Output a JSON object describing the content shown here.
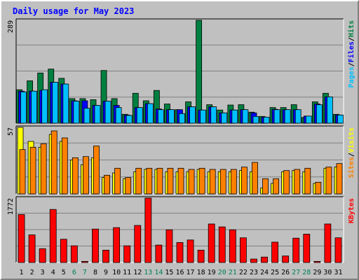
{
  "chart_data": {
    "type": "bar",
    "title": "Daily usage for May 2023",
    "colors": {
      "background": "#c0c0c0",
      "title": "#0000ff",
      "pages": "#00c0ff",
      "files": "#0000ff",
      "hits": "#008040",
      "sites": "#ff8000",
      "visits": "#ffff00",
      "kbytes": "#ff0000",
      "weekend_label": "#00805c",
      "weekday_label": "#000000"
    },
    "categories": [
      "1",
      "2",
      "3",
      "4",
      "5",
      "6",
      "7",
      "8",
      "9",
      "10",
      "11",
      "12",
      "13",
      "14",
      "15",
      "16",
      "17",
      "18",
      "19",
      "20",
      "21",
      "22",
      "23",
      "24",
      "25",
      "26",
      "27",
      "28",
      "29",
      "30",
      "31"
    ],
    "weekend_days": [
      "6",
      "7",
      "13",
      "14",
      "20",
      "21",
      "27",
      "28"
    ],
    "panels": [
      {
        "id": "hits-files-pages",
        "max_label": "289",
        "ymax": 289,
        "legend": [
          {
            "text": "Pages",
            "color": "#00c0ff"
          },
          {
            "text": "/",
            "color": "#000000"
          },
          {
            "text": "Files",
            "color": "#0000ff"
          },
          {
            "text": "/",
            "color": "#000000"
          },
          {
            "text": "Hits",
            "color": "#008040"
          }
        ],
        "series": [
          {
            "name": "Hits",
            "color": "#008040",
            "values": [
              94,
              119,
              141,
              152,
              126,
              69,
              69,
              66,
              148,
              69,
              25,
              84,
              63,
              92,
              54,
              38,
              60,
              289,
              52,
              37,
              51,
              52,
              31,
              19,
              44,
              44,
              52,
              16,
              60,
              84,
              25
            ]
          },
          {
            "name": "Files",
            "color": "#0000ff",
            "values": [
              90,
              90,
              92,
              115,
              110,
              63,
              63,
              50,
              62,
              50,
              23,
              44,
              55,
              40,
              38,
              38,
              46,
              37,
              46,
              29,
              37,
              38,
              29,
              17,
              39,
              38,
              38,
              20,
              54,
              74,
              23
            ]
          },
          {
            "name": "Pages",
            "color": "#00c0ff",
            "values": [
              88,
              90,
              94,
              115,
              110,
              62,
              42,
              50,
              62,
              44,
              22,
              44,
              55,
              38,
              38,
              27,
              46,
              37,
              46,
              29,
              37,
              38,
              19,
              17,
              38,
              38,
              38,
              20,
              52,
              74,
              23
            ]
          }
        ]
      },
      {
        "id": "visits-sites",
        "max_label": "57",
        "ymax": 57,
        "legend": [
          {
            "text": "Sites",
            "color": "#ff8000"
          },
          {
            "text": "/",
            "color": "#000000"
          },
          {
            "text": "Visits",
            "color": "#ffff00"
          }
        ],
        "series": [
          {
            "name": "Visits",
            "color": "#ffff00",
            "values": [
              57,
              45,
              40,
              51,
              45,
              29,
              25,
              31,
              14,
              18,
              13,
              19,
              21,
              21,
              19,
              19,
              19,
              21,
              19,
              19,
              19,
              20,
              19,
              5,
              9,
              19,
              20,
              19,
              9,
              22,
              23
            ]
          },
          {
            "name": "Sites",
            "color": "#ff8000",
            "values": [
              38,
              40,
              43,
              54,
              48,
              31,
              32,
              41,
              16,
              22,
              14,
              22,
              22,
              22,
              22,
              22,
              21,
              22,
              21,
              21,
              21,
              23,
              27,
              13,
              13,
              20,
              21,
              22,
              10,
              23,
              26
            ]
          }
        ]
      },
      {
        "id": "kbytes",
        "max_label": "1772",
        "ymax": 1772,
        "legend": [
          {
            "text": "KBytes",
            "color": "#ff0000"
          }
        ],
        "series": [
          {
            "name": "KBytes",
            "color": "#ff0000",
            "values": [
              1320,
              760,
              380,
              1460,
              640,
              460,
              30,
              920,
              340,
              960,
              460,
              1020,
              1772,
              480,
              900,
              550,
              620,
              340,
              1060,
              980,
              900,
              680,
              95,
              150,
              560,
              180,
              670,
              780,
              30,
              1060,
              680
            ]
          }
        ]
      }
    ]
  }
}
